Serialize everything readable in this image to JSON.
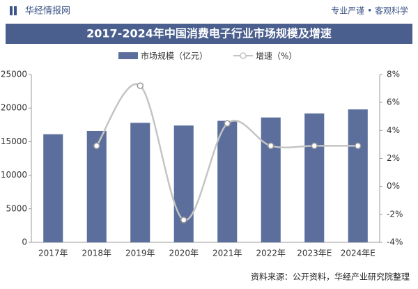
{
  "header": {
    "brand": "华经情报网",
    "slogan": "专业严谨 • 客观科学"
  },
  "chart_data": {
    "type": "combo",
    "title": "2017-2024年中国消费电子行业市场规模及增速",
    "categories": [
      "2017年",
      "2018年",
      "2019年",
      "2020年",
      "2021年",
      "2022年",
      "2023年E",
      "2024年E"
    ],
    "series": [
      {
        "name": "市场规模（亿元）",
        "type": "bar",
        "color": "#5b6e9c",
        "values": [
          16100,
          16600,
          17800,
          17400,
          18100,
          18600,
          19200,
          19800
        ]
      },
      {
        "name": "增速（%）",
        "type": "line",
        "axis": "y2",
        "color": "#c4c4c4",
        "values": [
          null,
          2.9,
          7.2,
          -2.4,
          4.5,
          2.9,
          2.9,
          2.9
        ]
      }
    ],
    "ylim": [
      0,
      25000
    ],
    "yticks": [
      0,
      5000,
      10000,
      15000,
      20000,
      25000
    ],
    "y2lim": [
      -4,
      8
    ],
    "y2ticks": [
      {
        "value": -4,
        "label": "-4%"
      },
      {
        "value": -2,
        "label": "-2%"
      },
      {
        "value": 0,
        "label": "0%"
      },
      {
        "value": 2,
        "label": "2%"
      },
      {
        "value": 4,
        "label": "4%"
      },
      {
        "value": 6,
        "label": "6%"
      },
      {
        "value": 8,
        "label": "8%"
      }
    ],
    "grid": false,
    "source": "资料来源：公开资料，华经产业研究院整理"
  }
}
